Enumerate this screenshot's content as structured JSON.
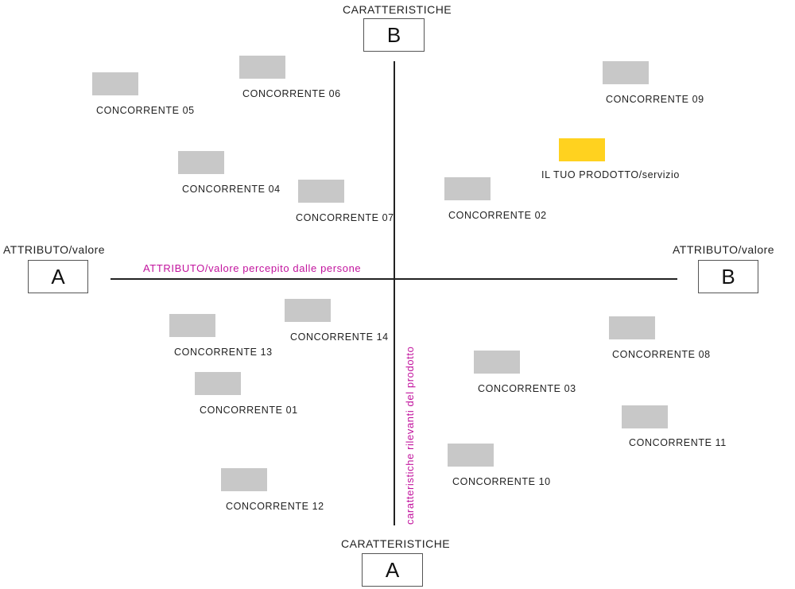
{
  "top_axis": {
    "title": "CARATTERISTICHE",
    "box": "B"
  },
  "bottom_axis": {
    "title": "CARATTERISTICHE",
    "box": "A"
  },
  "left_axis": {
    "title": "ATTRIBUTO/valore",
    "box": "A"
  },
  "right_axis": {
    "title": "ATTRIBUTO/valore",
    "box": "B"
  },
  "horizontal_caption": "ATTRIBUTO/valore percepito dalle persone",
  "vertical_caption": "caratteristiche rilevanti del prodotto",
  "colors": {
    "competitor": "#c8c8c8",
    "product": "#ffd21f",
    "caption": "#c2149e",
    "axis": "#222222"
  },
  "items": [
    {
      "label": "CONCORRENTE 05",
      "kind": "competitor"
    },
    {
      "label": "CONCORRENTE 06",
      "kind": "competitor"
    },
    {
      "label": "CONCORRENTE 09",
      "kind": "competitor"
    },
    {
      "label": "IL TUO PRODOTTO/servizio",
      "kind": "product"
    },
    {
      "label": "CONCORRENTE 04",
      "kind": "competitor"
    },
    {
      "label": "CONCORRENTE 07",
      "kind": "competitor"
    },
    {
      "label": "CONCORRENTE 02",
      "kind": "competitor"
    },
    {
      "label": "CONCORRENTE 14",
      "kind": "competitor"
    },
    {
      "label": "CONCORRENTE 13",
      "kind": "competitor"
    },
    {
      "label": "CONCORRENTE 08",
      "kind": "competitor"
    },
    {
      "label": "CONCORRENTE 03",
      "kind": "competitor"
    },
    {
      "label": "CONCORRENTE 01",
      "kind": "competitor"
    },
    {
      "label": "CONCORRENTE 11",
      "kind": "competitor"
    },
    {
      "label": "CONCORRENTE 10",
      "kind": "competitor"
    },
    {
      "label": "CONCORRENTE 12",
      "kind": "competitor"
    }
  ]
}
